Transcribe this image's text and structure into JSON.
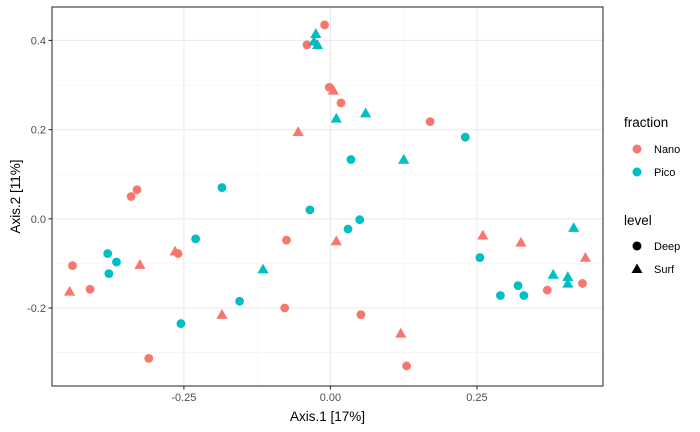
{
  "chart_data": {
    "type": "scatter",
    "title": "",
    "xlabel": "Axis.1   [17%]",
    "ylabel": "Axis.2   [11%]",
    "xlim": [
      -0.475,
      0.465
    ],
    "ylim": [
      -0.375,
      0.475
    ],
    "x_ticks": [
      -0.25,
      0,
      0.25
    ],
    "x_tick_labels": [
      "-0.25",
      "0.00",
      "0.25"
    ],
    "y_ticks": [
      -0.2,
      0,
      0.2,
      0.4
    ],
    "y_tick_labels": [
      "-0.2",
      "0.0",
      "0.2",
      "0.4"
    ],
    "grid": true,
    "legend_position": "right",
    "legends": [
      {
        "title": "fraction",
        "entries": [
          {
            "label": "Nano",
            "color": "#F8766D"
          },
          {
            "label": "Pico",
            "color": "#00BFC4"
          }
        ]
      },
      {
        "title": "level",
        "entries": [
          {
            "label": "Deep",
            "shape": "circle"
          },
          {
            "label": "Surf",
            "shape": "triangle"
          }
        ]
      }
    ],
    "series": [
      {
        "fraction": "Nano",
        "level": "Deep",
        "color": "#F8766D",
        "shape": "circle",
        "x": [
          -0.44,
          -0.41,
          -0.33,
          -0.34,
          -0.26,
          -0.31,
          -0.075,
          -0.078,
          -0.04,
          -0.01,
          -0.002,
          0.018,
          0.052,
          0.17,
          0.13,
          0.37,
          0.43
        ],
        "y": [
          -0.105,
          -0.158,
          0.065,
          0.05,
          -0.078,
          -0.313,
          -0.048,
          -0.2,
          0.39,
          0.435,
          0.295,
          0.26,
          -0.215,
          0.218,
          -0.33,
          -0.16,
          -0.145
        ]
      },
      {
        "fraction": "Nano",
        "level": "Surf",
        "color": "#F8766D",
        "shape": "triangle",
        "x": [
          -0.445,
          -0.325,
          -0.265,
          -0.185,
          -0.055,
          0.005,
          0.01,
          0.12,
          0.26,
          0.325,
          0.435
        ],
        "y": [
          -0.163,
          -0.103,
          -0.073,
          -0.215,
          0.195,
          0.288,
          -0.05,
          -0.257,
          -0.037,
          -0.053,
          -0.087
        ]
      },
      {
        "fraction": "Pico",
        "level": "Deep",
        "color": "#00BFC4",
        "shape": "circle",
        "x": [
          -0.38,
          -0.378,
          -0.365,
          -0.255,
          -0.23,
          -0.185,
          -0.155,
          -0.035,
          0.03,
          0.035,
          0.05,
          0.23,
          0.255,
          0.29,
          0.32,
          0.33
        ],
        "y": [
          -0.078,
          -0.123,
          -0.097,
          -0.235,
          -0.045,
          0.07,
          -0.185,
          0.02,
          -0.023,
          0.133,
          -0.002,
          0.183,
          -0.087,
          -0.172,
          -0.15,
          -0.172
        ]
      },
      {
        "fraction": "Pico",
        "level": "Surf",
        "color": "#00BFC4",
        "shape": "triangle",
        "x": [
          -0.115,
          -0.025,
          -0.028,
          -0.022,
          0.01,
          0.06,
          0.125,
          0.38,
          0.405,
          0.405,
          0.415
        ],
        "y": [
          -0.113,
          0.415,
          0.398,
          0.39,
          0.225,
          0.237,
          0.133,
          -0.125,
          -0.13,
          -0.145,
          -0.02
        ]
      }
    ]
  }
}
